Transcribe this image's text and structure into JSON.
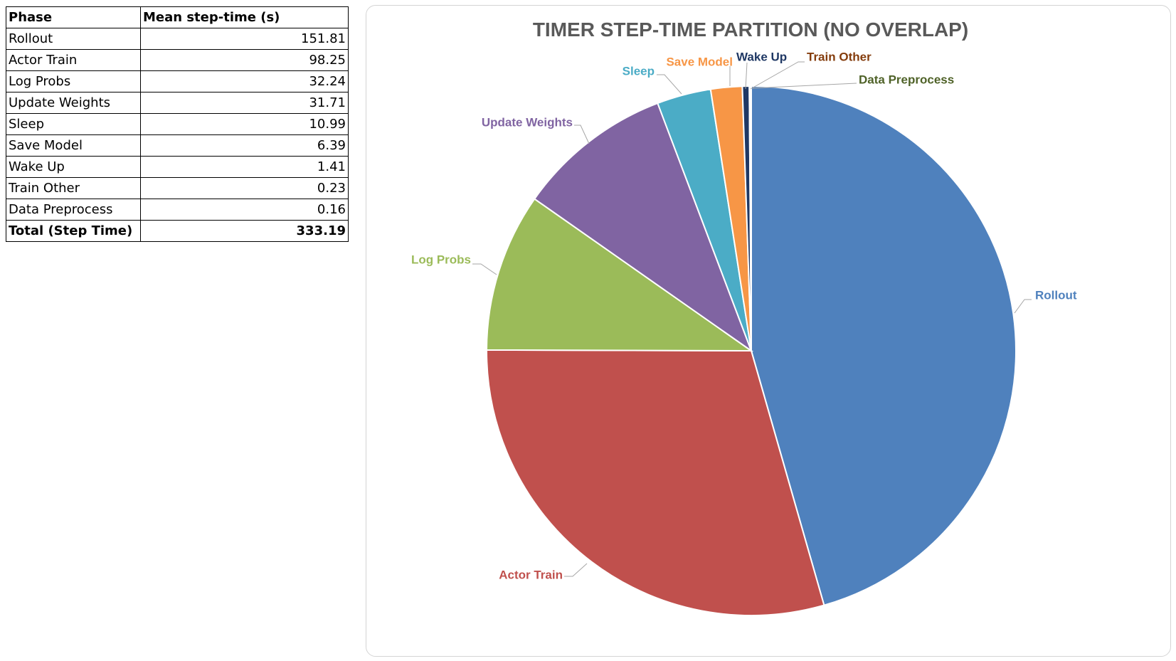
{
  "table": {
    "headers": [
      "Phase",
      "Mean step-time (s)"
    ],
    "rows": [
      {
        "phase": "Rollout",
        "value": "151.81"
      },
      {
        "phase": "Actor Train",
        "value": "98.25"
      },
      {
        "phase": "Log Probs",
        "value": "32.24"
      },
      {
        "phase": "Update Weights",
        "value": "31.71"
      },
      {
        "phase": "Sleep",
        "value": "10.99"
      },
      {
        "phase": "Save Model",
        "value": "6.39"
      },
      {
        "phase": "Wake Up",
        "value": "1.41"
      },
      {
        "phase": "Train Other",
        "value": "0.23"
      },
      {
        "phase": "Data Preprocess",
        "value": "0.16"
      }
    ],
    "total": {
      "phase": "Total (Step Time)",
      "value": "333.19"
    }
  },
  "chart_data": {
    "type": "pie",
    "title": "TIMER STEP-TIME PARTITION (NO OVERLAP)",
    "categories": [
      "Rollout",
      "Actor Train",
      "Log Probs",
      "Update Weights",
      "Sleep",
      "Save Model",
      "Wake Up",
      "Train Other",
      "Data Preprocess"
    ],
    "values": [
      151.81,
      98.25,
      32.24,
      31.71,
      10.99,
      6.39,
      1.41,
      0.23,
      0.16
    ],
    "colors": [
      "#4f81bd",
      "#c0504d",
      "#9bbb59",
      "#8064a2",
      "#4bacc6",
      "#f79646",
      "#1f3864",
      "#843c0c",
      "#4f6228"
    ],
    "label_colors": [
      "#4f81bd",
      "#c0504d",
      "#9bbb59",
      "#8064a2",
      "#4bacc6",
      "#f79646",
      "#1f3864",
      "#843c0c",
      "#4f6228"
    ],
    "start_angle": "12 o'clock",
    "direction": "clockwise",
    "labels_outside": true,
    "legend": "none"
  }
}
